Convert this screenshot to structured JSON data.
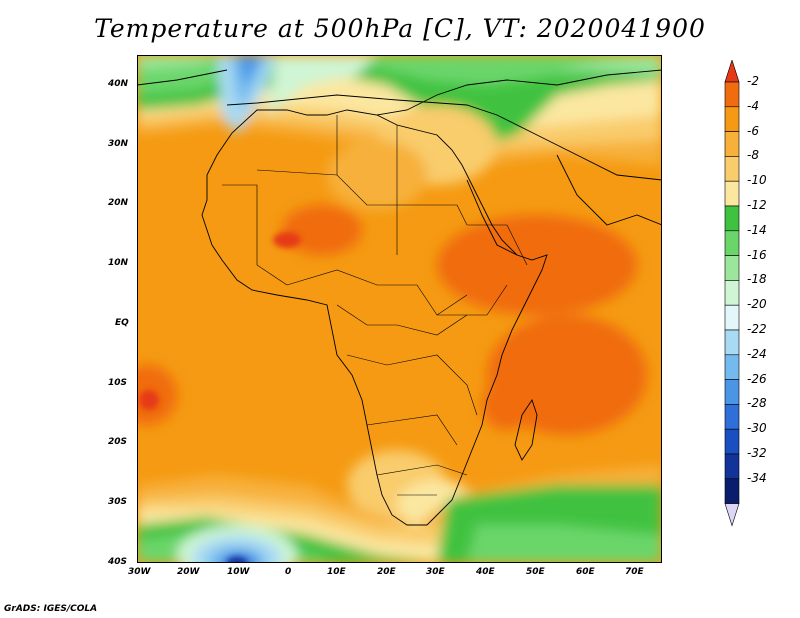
{
  "title": "Temperature at 500hPa [C], VT: 2020041900",
  "lat_labels": [
    "40N",
    "30N",
    "20N",
    "10N",
    "EQ",
    "10S",
    "20S",
    "30S",
    "40S"
  ],
  "lon_labels": [
    "30W",
    "20W",
    "10W",
    "0",
    "10E",
    "20E",
    "30E",
    "40E",
    "50E",
    "60E",
    "70E"
  ],
  "colorbar": {
    "labels": [
      "-2",
      "-4",
      "-6",
      "-8",
      "-10",
      "-12",
      "-14",
      "-16",
      "-18",
      "-20",
      "-22",
      "-24",
      "-26",
      "-28",
      "-30",
      "-32",
      "-34"
    ],
    "colors": [
      "#e63a16",
      "#f06c0e",
      "#f59a12",
      "#f7b03a",
      "#f9cc6c",
      "#fbe7a0",
      "#3fc23f",
      "#6ad66a",
      "#9be69b",
      "#cff5d4",
      "#e3f7fb",
      "#a9daf3",
      "#73bbee",
      "#4b95e6",
      "#2f6fd9",
      "#1a4fc1",
      "#12349a",
      "#0a1c6e"
    ],
    "top_arrow": "#e63a16",
    "bottom_arrow": "#dcd6f7"
  },
  "credit": "GrADS: IGES/COLA"
}
